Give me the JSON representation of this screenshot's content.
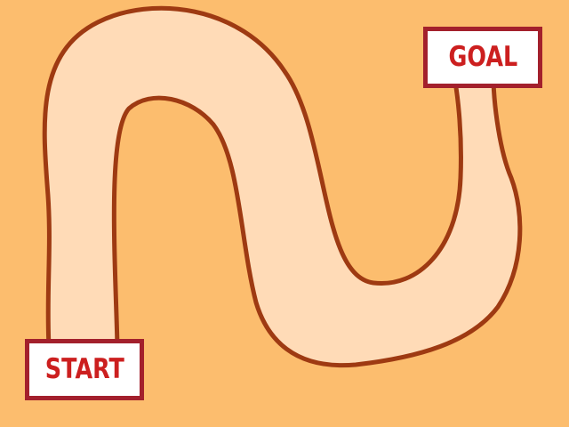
{
  "game": {
    "background_color": "#fcbd6e",
    "path_fill_color": "#ffdbb7",
    "path_outline_color": "#9e3a12",
    "label_border_color": "#a3202c",
    "label_text_color": "#cc1f1f",
    "start_label": "START",
    "goal_label": "GOAL"
  }
}
